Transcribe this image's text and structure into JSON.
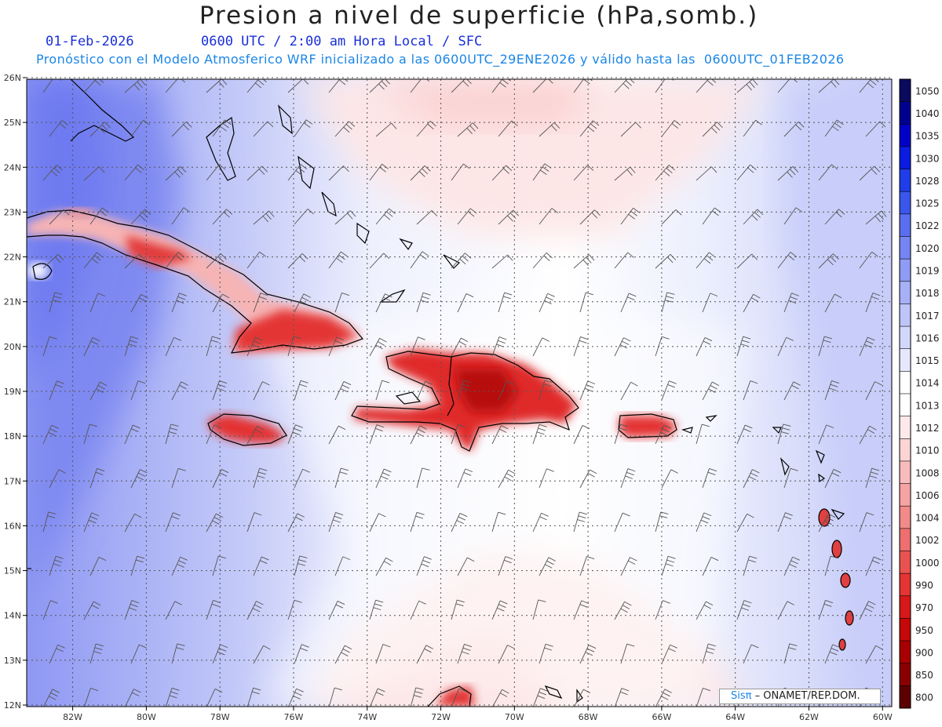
{
  "header": {
    "title": "Presion a nivel de superficie (hPa,somb.)",
    "date": "01-Feb-2026",
    "time_info": "0600 UTC / 2:00 am Hora Local / SFC",
    "forecast_info": "Pronóstico con el Modelo Atmosferico WRF inicializado a las 0600UTC_29ENE2026 y válido hasta las  0600UTC_01FEB2026"
  },
  "map": {
    "lat_labels": [
      "26N",
      "25N",
      "24N",
      "23N",
      "22N",
      "21N",
      "20N",
      "19N",
      "18N",
      "17N",
      "16N",
      "15N",
      "14N",
      "13N",
      "12N"
    ],
    "lon_labels": [
      "82W",
      "80W",
      "78W",
      "76W",
      "74W",
      "72W",
      "70W",
      "68W",
      "66W",
      "64W",
      "62W",
      "60W"
    ],
    "variable": "sea-level pressure (shaded) with wind barbs"
  },
  "colorbar": {
    "levels": [
      "1050",
      "1040",
      "1035",
      "1030",
      "1028",
      "1025",
      "1022",
      "1020",
      "1019",
      "1018",
      "1017",
      "1016",
      "1015",
      "1014",
      "1013",
      "1012",
      "1010",
      "1008",
      "1006",
      "1004",
      "1002",
      "1000",
      "990",
      "970",
      "950",
      "900",
      "850",
      "800"
    ],
    "colors": [
      "#0a0a5e",
      "#00008f",
      "#0000c7",
      "#0a1ce0",
      "#1f3de8",
      "#3b56ec",
      "#5a6ff0",
      "#7585f2",
      "#8f9cf5",
      "#a7b1f7",
      "#bdc5f9",
      "#d2d8fb",
      "#e6e9fd",
      "#ffffff",
      "#ffffff",
      "#fde9e9",
      "#fbd4d4",
      "#f8bcbc",
      "#f5a3a3",
      "#f28a8a",
      "#ee6f6f",
      "#ea5252",
      "#e43434",
      "#d71818",
      "#c50808",
      "#a80000",
      "#8a0000",
      "#5c0000"
    ]
  },
  "credit": {
    "brand": "Sisπ",
    "org": " – ONAMET/REP.DOM."
  }
}
